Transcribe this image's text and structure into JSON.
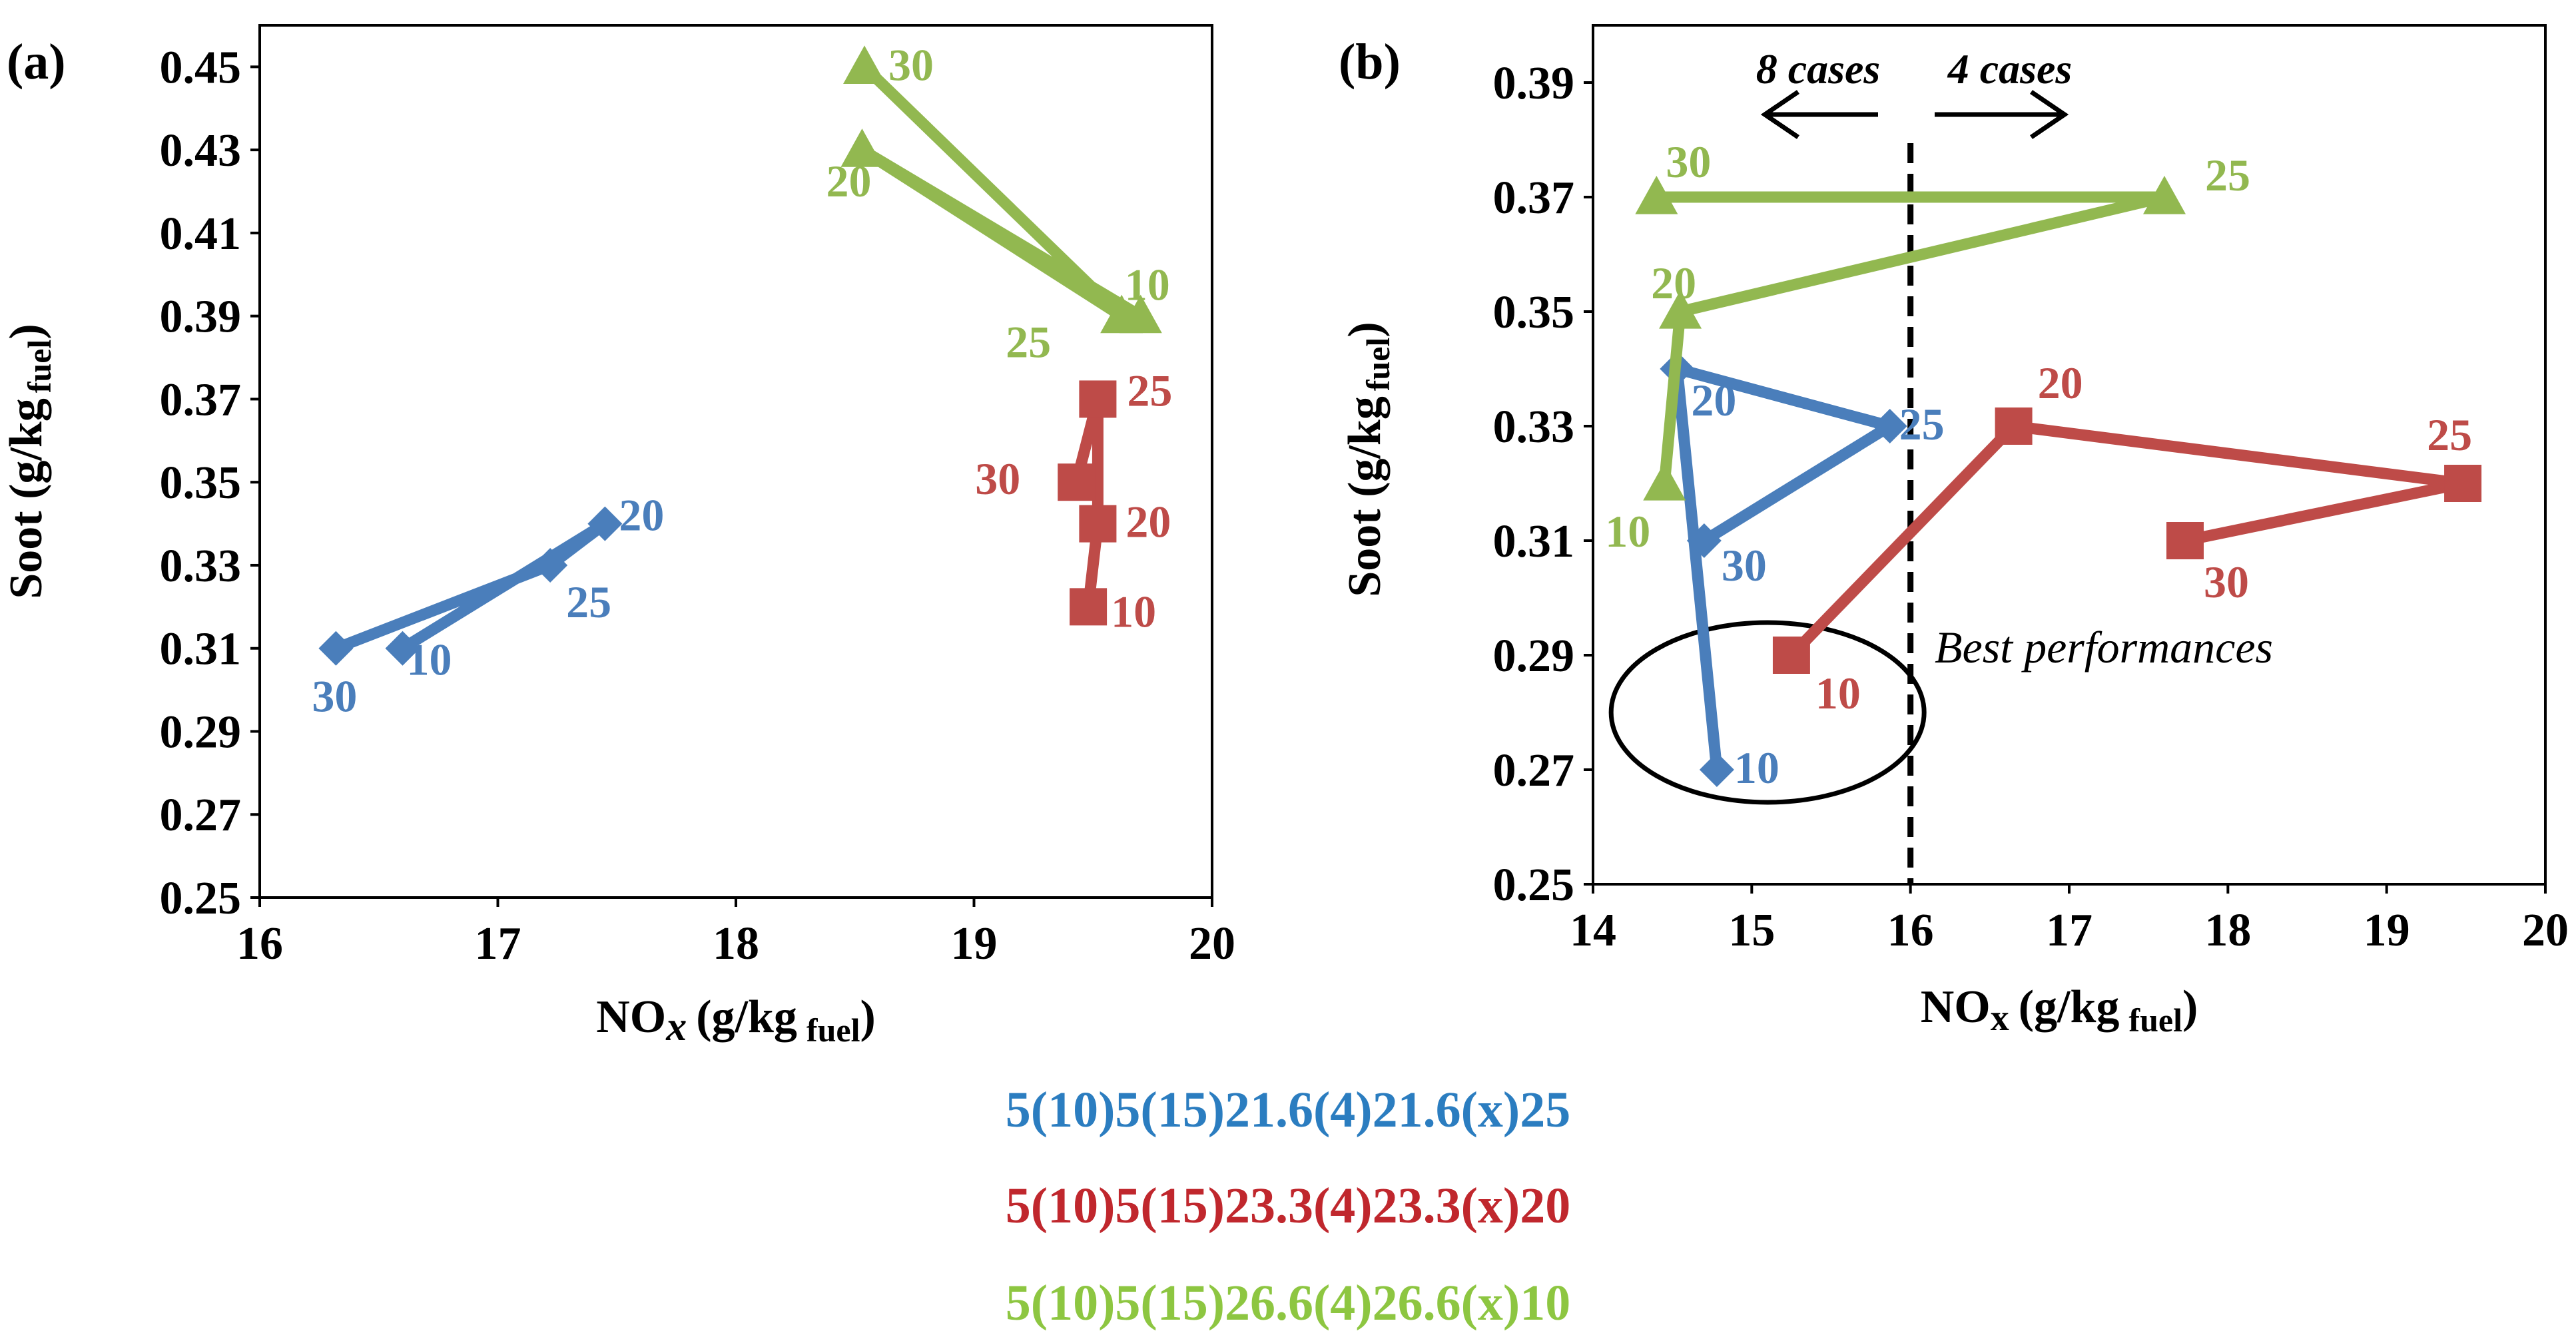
{
  "chart_data": [
    {
      "type": "line",
      "panel_label": "(a)",
      "xlabel": "NO",
      "xlabel_sub_x": "x",
      "xlabel_unit": "(g/kg",
      "xlabel_unit_sub": "fuel",
      "xlabel_close": ")",
      "ylabel": "Soot (g/kg",
      "ylabel_sub": "fuel",
      "ylabel_close": ")",
      "xlim": [
        16,
        20
      ],
      "ylim": [
        0.25,
        0.46
      ],
      "xticks": [
        16,
        17,
        18,
        19,
        20
      ],
      "yticks": [
        0.25,
        0.27,
        0.29,
        0.31,
        0.33,
        0.35,
        0.37,
        0.39,
        0.41,
        0.43,
        0.45
      ],
      "ytick_labels": [
        "0.25",
        "0.27",
        "0.29",
        "0.31",
        "0.33",
        "0.35",
        "0.37",
        "0.39",
        "0.41",
        "0.43",
        "0.45"
      ],
      "series": [
        {
          "name": "5(10)5(15)21.6(4)21.6(x)25",
          "color": "#4a7ebb",
          "marker": "diamond",
          "points": [
            {
              "x": 16.6,
              "y": 0.31,
              "label": "10"
            },
            {
              "x": 17.45,
              "y": 0.34,
              "label": "20"
            },
            {
              "x": 17.22,
              "y": 0.33,
              "label": "25"
            },
            {
              "x": 16.32,
              "y": 0.31,
              "label": "30"
            }
          ]
        },
        {
          "name": "5(10)5(15)23.3(4)23.3(x)20",
          "color": "#be4b48",
          "marker": "square",
          "points": [
            {
              "x": 19.48,
              "y": 0.32,
              "label": "10"
            },
            {
              "x": 19.52,
              "y": 0.34,
              "label": "20"
            },
            {
              "x": 19.52,
              "y": 0.37,
              "label": "25"
            },
            {
              "x": 19.43,
              "y": 0.35,
              "label": "30"
            }
          ]
        },
        {
          "name": "5(10)5(15)26.6(4)26.6(x)10",
          "color": "#92b850",
          "marker": "triangle",
          "points": [
            {
              "x": 19.7,
              "y": 0.39,
              "label": "10"
            },
            {
              "x": 18.53,
              "y": 0.43,
              "label": "20"
            },
            {
              "x": 19.62,
              "y": 0.39,
              "label": "25"
            },
            {
              "x": 18.54,
              "y": 0.45,
              "label": "30"
            }
          ]
        }
      ]
    },
    {
      "type": "line",
      "panel_label": "(b)",
      "xlabel": "NO",
      "xlabel_sub_x": "x",
      "xlabel_unit": "(g/kg",
      "xlabel_unit_sub": "fuel",
      "xlabel_close": ")",
      "ylabel": "Soot (g/kg",
      "ylabel_sub": "fuel",
      "ylabel_close": ")",
      "xlim": [
        14,
        20
      ],
      "ylim": [
        0.25,
        0.4
      ],
      "xticks": [
        14,
        15,
        16,
        17,
        18,
        19,
        20
      ],
      "yticks": [
        0.25,
        0.27,
        0.29,
        0.31,
        0.33,
        0.35,
        0.37,
        0.39
      ],
      "ytick_labels": [
        "0.25",
        "0.27",
        "0.29",
        "0.31",
        "0.33",
        "0.35",
        "0.37",
        "0.39"
      ],
      "annotations": {
        "vline_x": 16,
        "left_arrow_text": "8 cases",
        "right_arrow_text": "4 cases",
        "ellipse_text": "Best performances",
        "ellipse_center": {
          "x": 15.1,
          "y": 0.28
        }
      },
      "series": [
        {
          "name": "5(10)5(15)21.6(4)21.6(x)25",
          "color": "#4a7ebb",
          "marker": "diamond",
          "points": [
            {
              "x": 14.78,
              "y": 0.27,
              "label": "10"
            },
            {
              "x": 14.53,
              "y": 0.34,
              "label": "20"
            },
            {
              "x": 15.87,
              "y": 0.33,
              "label": "25"
            },
            {
              "x": 14.7,
              "y": 0.31,
              "label": "30"
            }
          ]
        },
        {
          "name": "5(10)5(15)23.3(4)23.3(x)20",
          "color": "#be4b48",
          "marker": "square",
          "points": [
            {
              "x": 15.25,
              "y": 0.29,
              "label": "10"
            },
            {
              "x": 16.65,
              "y": 0.33,
              "label": "20"
            },
            {
              "x": 19.48,
              "y": 0.32,
              "label": "25"
            },
            {
              "x": 17.73,
              "y": 0.31,
              "label": "30"
            }
          ]
        },
        {
          "name": "5(10)5(15)26.6(4)26.6(x)10",
          "color": "#92b850",
          "marker": "triangle",
          "points": [
            {
              "x": 14.45,
              "y": 0.32,
              "label": "10"
            },
            {
              "x": 14.55,
              "y": 0.35,
              "label": "20"
            },
            {
              "x": 17.6,
              "y": 0.37,
              "label": "25"
            },
            {
              "x": 14.4,
              "y": 0.37,
              "label": "30"
            }
          ]
        }
      ]
    }
  ],
  "legend": {
    "items": [
      {
        "text": "5(10)5(15)21.6(4)21.6(x)25",
        "color": "#2b7dc0"
      },
      {
        "text": "5(10)5(15)23.3(4)23.3(x)20",
        "color": "#c0272d"
      },
      {
        "text": "5(10)5(15)26.6(4)26.6(x)10",
        "color": "#8dc641"
      }
    ]
  }
}
